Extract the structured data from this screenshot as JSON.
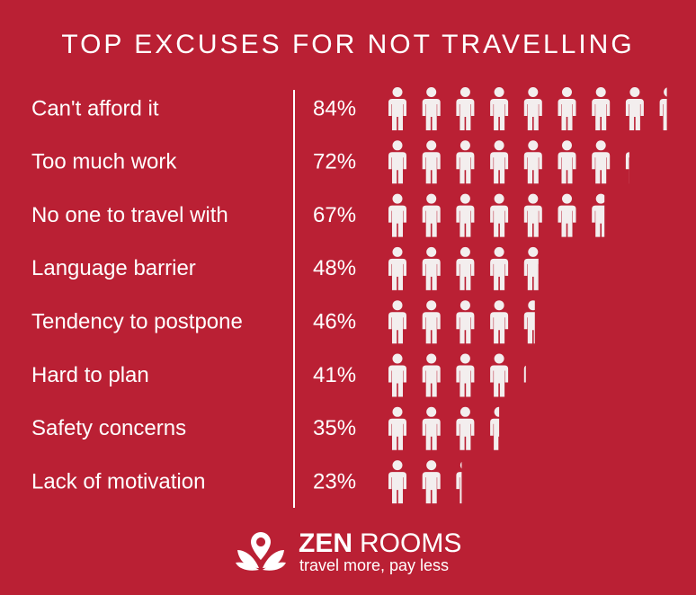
{
  "chart_data": {
    "type": "pictograph",
    "title": "TOP EXCUSES FOR NOT TRAVELLING",
    "categories": [
      "Can't afford it",
      "Too much work",
      "No one to travel with",
      "Language barrier",
      "Tendency to postpone",
      "Hard to plan",
      "Safety concerns",
      "Lack of motivation"
    ],
    "values": [
      84,
      72,
      67,
      48,
      46,
      41,
      35,
      23
    ],
    "value_labels": [
      "84%",
      "72%",
      "67%",
      "48%",
      "46%",
      "41%",
      "35%",
      "23%"
    ],
    "color": "#f3eeee",
    "xlim": [
      0,
      100
    ]
  },
  "logo": {
    "brand_bold": "ZEN",
    "brand_light": "ROOMS",
    "tagline": "travel more, pay less"
  }
}
